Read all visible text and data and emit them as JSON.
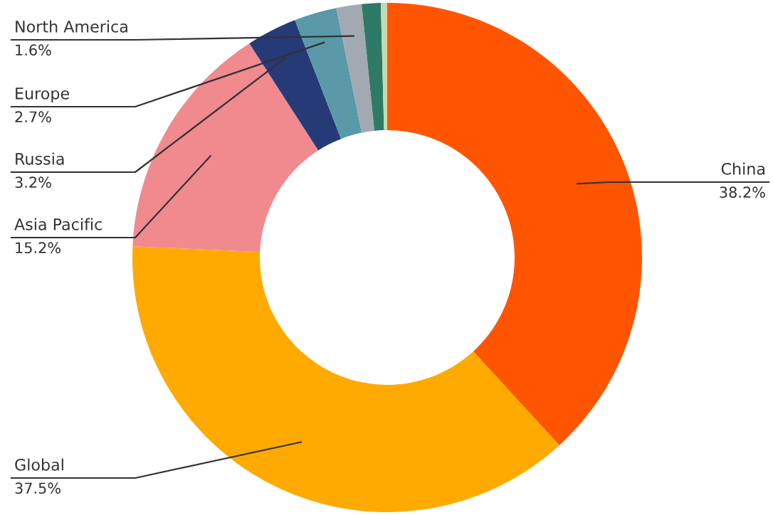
{
  "chart_data": {
    "type": "donut",
    "categories": [
      "China",
      "Global",
      "Asia Pacific",
      "Russia",
      "Europe",
      "North America",
      null,
      null
    ],
    "values": [
      38.2,
      37.5,
      15.2,
      3.2,
      2.7,
      1.6,
      1.2,
      0.4
    ],
    "value_labels": [
      "38.2%",
      "37.5%",
      "15.2%",
      "3.2%",
      "2.7%",
      "1.6%",
      null,
      null
    ],
    "colors": [
      "#ff5500",
      "#ffaa00",
      "#f08a8f",
      "#263a78",
      "#5a9aa8",
      "#a3a9b3",
      "#2e7a66",
      "#c8d8b0"
    ],
    "legend": false
  }
}
